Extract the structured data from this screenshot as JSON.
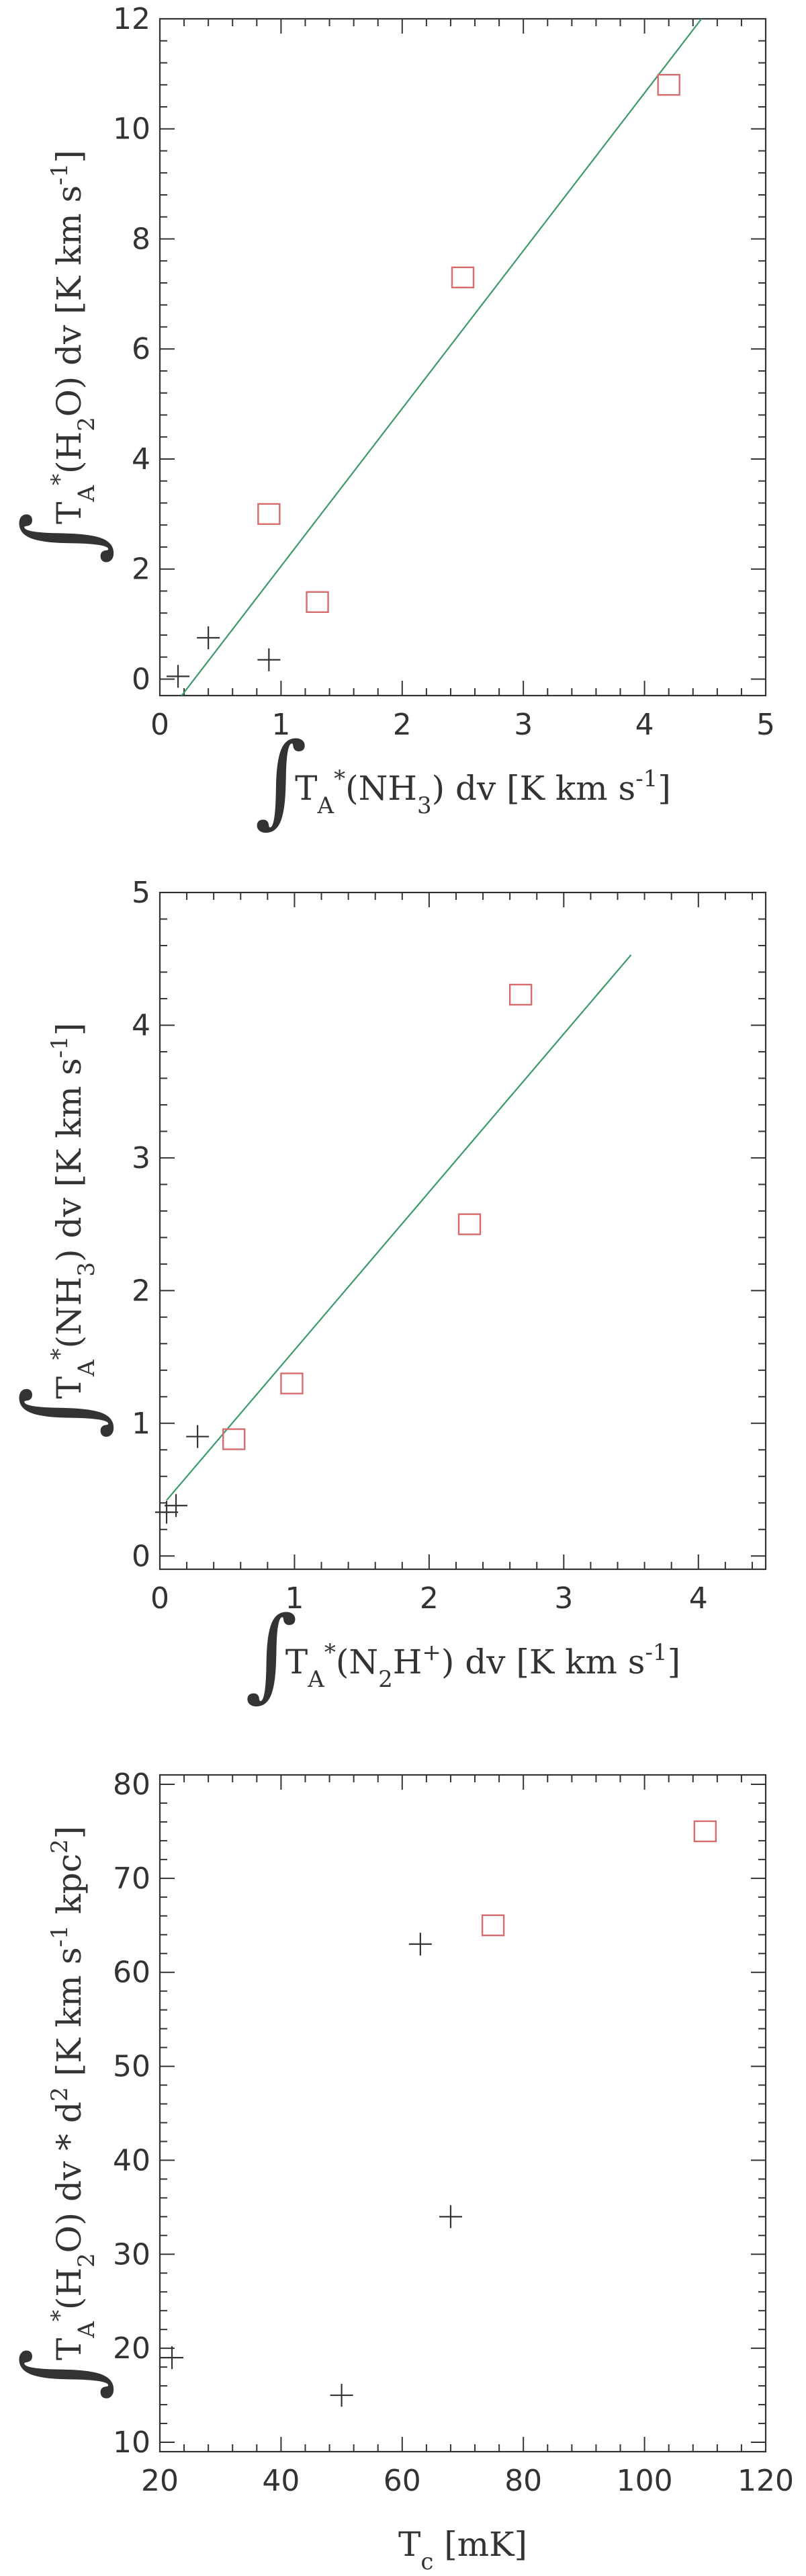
{
  "colors": {
    "axis": "#333333",
    "squares": "#d66c6c",
    "crosses": "#333333",
    "fit_line": "#3a9a6a"
  },
  "chart_data": [
    {
      "type": "scatter",
      "xlabel": {
        "integral": "∫",
        "parts": [
          {
            "t": "T"
          },
          {
            "t": "A",
            "sub": true
          },
          {
            "t": "*",
            "sup": true
          },
          {
            "t": "(NH"
          },
          {
            "t": "3",
            "sub": true
          },
          {
            "t": ") dv [K km s"
          },
          {
            "t": "-1",
            "sup": true
          },
          {
            "t": "]"
          }
        ]
      },
      "ylabel": {
        "integral": "∫",
        "parts": [
          {
            "t": "T"
          },
          {
            "t": "A",
            "sub": true
          },
          {
            "t": "*",
            "sup": true
          },
          {
            "t": "(H"
          },
          {
            "t": "2",
            "sub": true
          },
          {
            "t": "O) dv [K km s"
          },
          {
            "t": "-1",
            "sup": true
          },
          {
            "t": "]"
          }
        ]
      },
      "xlim": [
        0,
        5
      ],
      "ylim": [
        -0.3,
        12
      ],
      "xticks": [
        "0",
        "1",
        "2",
        "3",
        "4",
        "5"
      ],
      "yticks": [
        "0",
        "2",
        "4",
        "6",
        "8",
        "10",
        "12"
      ],
      "series": [
        {
          "marker": "square",
          "color": "#d66c6c",
          "points": [
            [
              0.9,
              3.0
            ],
            [
              1.3,
              1.4
            ],
            [
              2.5,
              7.3
            ],
            [
              4.2,
              10.8
            ]
          ]
        },
        {
          "marker": "plus",
          "color": "#333333",
          "points": [
            [
              0.15,
              0.05
            ],
            [
              0.4,
              0.75
            ],
            [
              0.9,
              0.35
            ]
          ]
        }
      ],
      "fit_line": {
        "from": [
          0.18,
          -0.3
        ],
        "to": [
          4.47,
          12
        ]
      }
    },
    {
      "type": "scatter",
      "xlabel": {
        "integral": "∫",
        "parts": [
          {
            "t": "T"
          },
          {
            "t": "A",
            "sub": true
          },
          {
            "t": "*",
            "sup": true
          },
          {
            "t": "(N"
          },
          {
            "t": "2",
            "sub": true
          },
          {
            "t": "H"
          },
          {
            "t": "+",
            "sup": true
          },
          {
            "t": ") dv [K km s"
          },
          {
            "t": "-1",
            "sup": true
          },
          {
            "t": "]"
          }
        ]
      },
      "ylabel": {
        "integral": "∫",
        "parts": [
          {
            "t": "T"
          },
          {
            "t": "A",
            "sub": true
          },
          {
            "t": "*",
            "sup": true
          },
          {
            "t": "(NH"
          },
          {
            "t": "3",
            "sub": true
          },
          {
            "t": ") dv [K km s"
          },
          {
            "t": "-1",
            "sup": true
          },
          {
            "t": "]"
          }
        ]
      },
      "xlim": [
        0,
        4.5
      ],
      "ylim": [
        -0.1,
        5
      ],
      "xticks": [
        "0",
        "1",
        "2",
        "3",
        "4"
      ],
      "yticks": [
        "0",
        "1",
        "2",
        "3",
        "4",
        "5"
      ],
      "series": [
        {
          "marker": "square",
          "color": "#d66c6c",
          "points": [
            [
              0.55,
              0.88
            ],
            [
              0.98,
              1.3
            ],
            [
              2.3,
              2.5
            ],
            [
              2.68,
              4.23
            ]
          ]
        },
        {
          "marker": "plus",
          "color": "#333333",
          "points": [
            [
              0.05,
              0.33
            ],
            [
              0.12,
              0.38
            ],
            [
              0.28,
              0.9
            ]
          ]
        }
      ],
      "fit_line": {
        "from": [
          0.05,
          0.42
        ],
        "to": [
          3.5,
          4.53
        ]
      }
    },
    {
      "type": "scatter",
      "xlabel": {
        "parts": [
          {
            "t": "T"
          },
          {
            "t": "c",
            "sub": true
          },
          {
            "t": " [mK]"
          }
        ]
      },
      "ylabel": {
        "integral": "∫",
        "parts": [
          {
            "t": "T"
          },
          {
            "t": "A",
            "sub": true
          },
          {
            "t": "*",
            "sup": true
          },
          {
            "t": "(H"
          },
          {
            "t": "2",
            "sub": true
          },
          {
            "t": "O) dv * d"
          },
          {
            "t": "2",
            "sup": true
          },
          {
            "t": " [K km s"
          },
          {
            "t": "-1",
            "sup": true
          },
          {
            "t": " kpc"
          },
          {
            "t": "2",
            "sup": true
          },
          {
            "t": "]"
          }
        ]
      },
      "xlim": [
        20,
        120
      ],
      "ylim": [
        9,
        81
      ],
      "xticks": [
        "20",
        "40",
        "60",
        "80",
        "100",
        "120"
      ],
      "yticks": [
        "10",
        "20",
        "30",
        "40",
        "50",
        "60",
        "70",
        "80"
      ],
      "series": [
        {
          "marker": "square",
          "color": "#d66c6c",
          "points": [
            [
              75,
              65
            ],
            [
              110,
              75
            ]
          ]
        },
        {
          "marker": "plus",
          "color": "#333333",
          "points": [
            [
              22,
              19
            ],
            [
              50,
              15
            ],
            [
              63,
              63
            ],
            [
              68,
              34
            ]
          ]
        }
      ]
    }
  ]
}
